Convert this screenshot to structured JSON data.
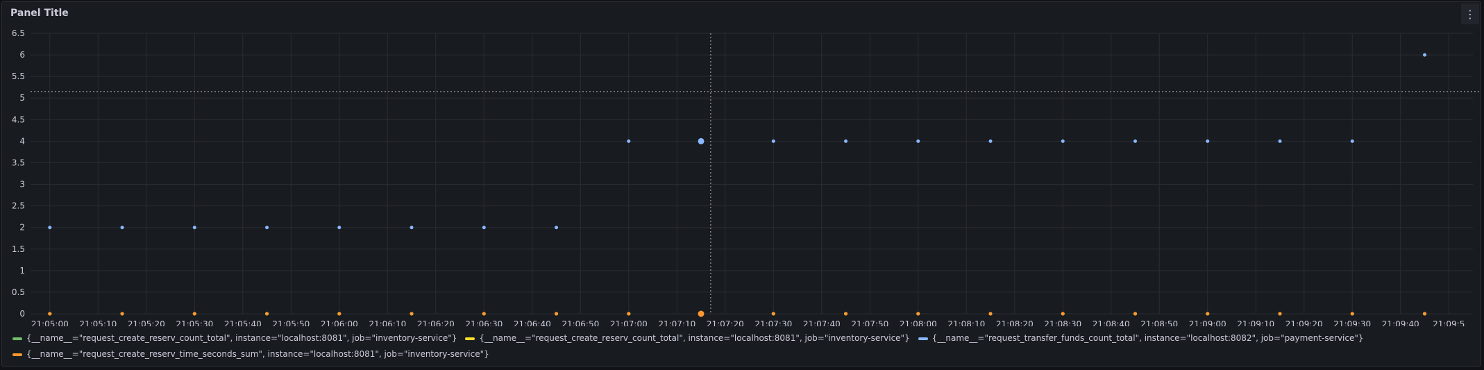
{
  "panel": {
    "title": "Panel Title",
    "menu_icon": "kebab-menu-icon"
  },
  "colors": {
    "background": "#181b1f",
    "grid": "#2a2d33",
    "green": "#73bf69",
    "yellow": "#fade2a",
    "blue": "#8ab8ff",
    "orange": "#ff9830"
  },
  "chart_data": {
    "type": "scatter",
    "ylim": [
      0,
      6.5
    ],
    "yticks": [
      "0",
      "0.5",
      "1",
      "1.5",
      "2",
      "2.5",
      "3",
      "3.5",
      "4",
      "4.5",
      "5",
      "5.5",
      "6",
      "6.5"
    ],
    "xticks": [
      "21:05:00",
      "21:05:10",
      "21:05:20",
      "21:05:30",
      "21:05:40",
      "21:05:50",
      "21:06:00",
      "21:06:10",
      "21:06:20",
      "21:06:30",
      "21:06:40",
      "21:06:50",
      "21:07:00",
      "21:07:10",
      "21:07:20",
      "21:07:30",
      "21:07:40",
      "21:07:50",
      "21:08:00",
      "21:08:10",
      "21:08:20",
      "21:08:30",
      "21:08:40",
      "21:08:50",
      "21:09:00",
      "21:09:10",
      "21:09:20",
      "21:09:30",
      "21:09:40",
      "21:09:5"
    ],
    "xlim": [
      "21:04:56",
      "21:09:55"
    ],
    "threshold_line_y": 5.15,
    "cursor_x": "21:07:17",
    "highlight_x": "21:07:15",
    "x": [
      "21:05:00",
      "21:05:15",
      "21:05:30",
      "21:05:45",
      "21:06:00",
      "21:06:15",
      "21:06:30",
      "21:06:45",
      "21:07:00",
      "21:07:15",
      "21:07:30",
      "21:07:45",
      "21:08:00",
      "21:08:15",
      "21:08:30",
      "21:08:45",
      "21:09:00",
      "21:09:15",
      "21:09:30",
      "21:09:45"
    ],
    "series": [
      {
        "name": "{__name__=\"request_create_reserv_count_total\", instance=\"localhost:8081\", job=\"inventory-service\"}",
        "color": "#73bf69",
        "values": [
          0,
          0,
          0,
          0,
          0,
          0,
          0,
          0,
          0,
          0,
          0,
          0,
          0,
          0,
          0,
          0,
          0,
          0,
          0,
          0
        ]
      },
      {
        "name": "{__name__=\"request_create_reserv_count_total\", instance=\"localhost:8081\", job=\"inventory-service\"}",
        "color": "#fade2a",
        "values": [
          0,
          0,
          0,
          0,
          0,
          0,
          0,
          0,
          0,
          0,
          0,
          0,
          0,
          0,
          0,
          0,
          0,
          0,
          0,
          0
        ]
      },
      {
        "name": "{__name__=\"request_transfer_funds_count_total\", instance=\"localhost:8082\", job=\"payment-service\"}",
        "color": "#8ab8ff",
        "values": [
          2,
          2,
          2,
          2,
          2,
          2,
          2,
          2,
          4,
          4,
          4,
          4,
          4,
          4,
          4,
          4,
          4,
          4,
          4,
          6
        ]
      },
      {
        "name": "{__name__=\"request_create_reserv_time_seconds_sum\", instance=\"localhost:8081\", job=\"inventory-service\"}",
        "color": "#ff9830",
        "values": [
          0,
          0,
          0,
          0,
          0,
          0,
          0,
          0,
          0,
          0,
          0,
          0,
          0,
          0,
          0,
          0,
          0,
          0,
          0,
          0
        ]
      }
    ]
  },
  "legend": [
    "{__name__=\"request_create_reserv_count_total\", instance=\"localhost:8081\", job=\"inventory-service\"}",
    "{__name__=\"request_create_reserv_count_total\", instance=\"localhost:8081\", job=\"inventory-service\"}",
    "{__name__=\"request_transfer_funds_count_total\", instance=\"localhost:8082\", job=\"payment-service\"}",
    "{__name__=\"request_create_reserv_time_seconds_sum\", instance=\"localhost:8081\", job=\"inventory-service\"}"
  ]
}
